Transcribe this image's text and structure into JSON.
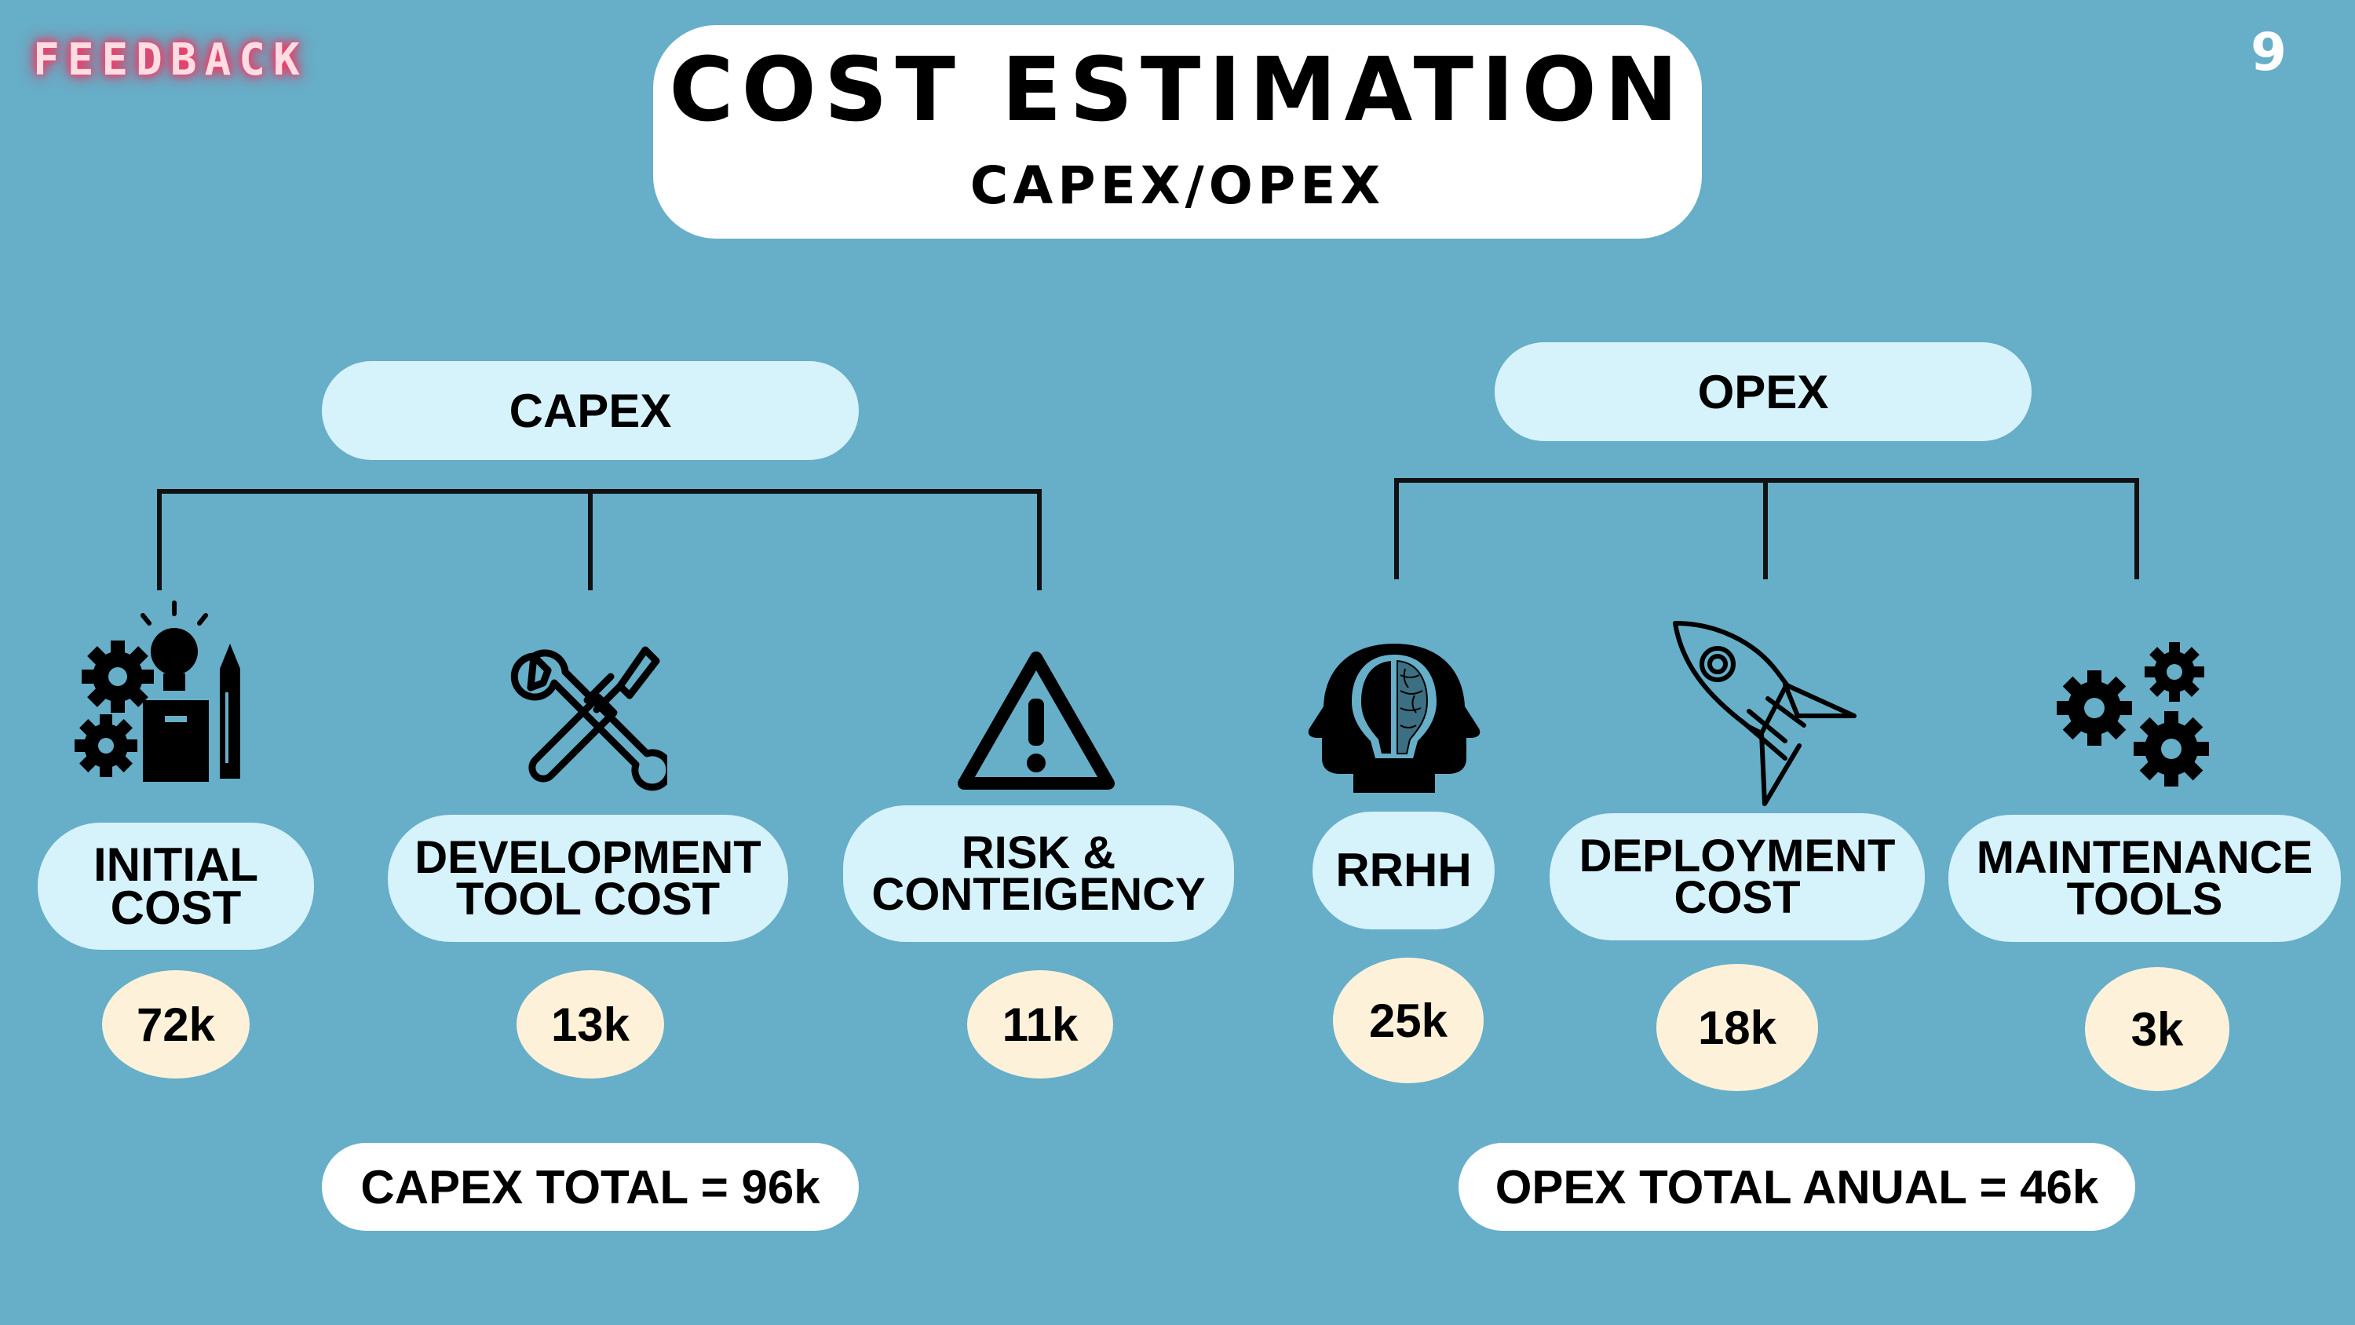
{
  "brand": {
    "logo_text": "FEEDBACK"
  },
  "page_number": "9",
  "header": {
    "title": "COST ESTIMATION",
    "subtitle": "CAPEX/OPEX"
  },
  "capex": {
    "label": "CAPEX",
    "items": [
      {
        "label": "INITIAL COST",
        "value": "72k",
        "icon": "gears-idea-icon"
      },
      {
        "label": "DEVELOPMENT TOOL COST",
        "value": "13k",
        "icon": "wrench-screwdriver-icon"
      },
      {
        "label": "RISK & CONTEIGENCY",
        "value": "11k",
        "icon": "warning-triangle-icon"
      }
    ],
    "total": "CAPEX TOTAL = 96k"
  },
  "opex": {
    "label": "OPEX",
    "items": [
      {
        "label": "RRHH",
        "value": "25k",
        "icon": "brain-heads-icon"
      },
      {
        "label": "DEPLOYMENT COST",
        "value": "18k",
        "icon": "rocket-icon"
      },
      {
        "label": "MAINTENANCE TOOLS",
        "value": "3k",
        "icon": "gears-icon"
      }
    ],
    "total": "OPEX TOTAL ANUAL = 46k"
  },
  "colors": {
    "background": "#67AEC8",
    "pill": "#D6F2FB",
    "value_circle": "#FDF1DA",
    "logo_glow": "#FF2D5A"
  }
}
